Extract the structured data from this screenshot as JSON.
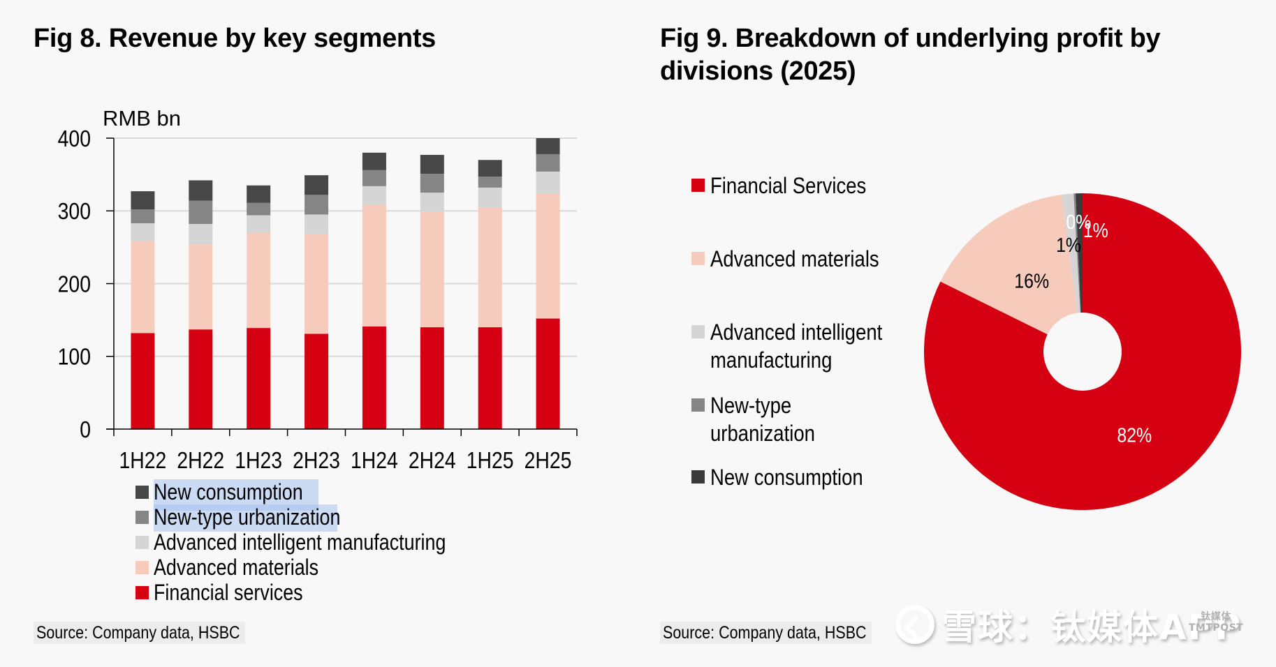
{
  "left_figure": {
    "title": "Fig 8. Revenue by key segments",
    "source": "Source: Company data, HSBC",
    "highlighted_legend_items": [
      "New consumption",
      "New-type urbanization"
    ]
  },
  "right_figure": {
    "title": "Fig 9. Breakdown of underlying profit by divisions (2025)",
    "source": "Source: Company data, HSBC"
  },
  "watermark": {
    "text": "雪球：钛媒体APP",
    "badge_line1": "钛媒体",
    "badge_line2": "TMTPOST",
    "logo_icon": "xueqiu-snowball-logo-icon"
  },
  "colors": {
    "financial_services": "#d50012",
    "advanced_materials": "#f6cbbb",
    "advanced_intelligent_manufacturing": "#d5d5d5",
    "new_type_urbanization": "#858585",
    "new_consumption": "#474747"
  },
  "chart_data": [
    {
      "type": "bar",
      "stacked": true,
      "title": "Fig 8. Revenue by key segments",
      "ylabel": "RMB bn",
      "xlabel": "",
      "ylim": [
        0,
        400
      ],
      "yticks": [
        0,
        100,
        200,
        300,
        400
      ],
      "grid": true,
      "legend_position": "bottom",
      "categories": [
        "1H22",
        "2H22",
        "1H23",
        "2H23",
        "1H24",
        "2H24",
        "1H25",
        "2H25"
      ],
      "series": [
        {
          "name": "Financial services",
          "color": "#d50012",
          "values": [
            132,
            137,
            139,
            131,
            141,
            140,
            140,
            152
          ]
        },
        {
          "name": "Advanced materials",
          "color": "#f6cbbb",
          "values": [
            127,
            117,
            131,
            137,
            167,
            159,
            165,
            172
          ]
        },
        {
          "name": "Advanced intelligent manufacturing",
          "color": "#d5d5d5",
          "values": [
            24,
            28,
            24,
            27,
            26,
            26,
            27,
            30
          ]
        },
        {
          "name": "New-type urbanization",
          "color": "#858585",
          "values": [
            19,
            32,
            17,
            27,
            22,
            26,
            15,
            24
          ]
        },
        {
          "name": "New consumption",
          "color": "#474747",
          "values": [
            25,
            28,
            24,
            27,
            24,
            26,
            23,
            22
          ]
        }
      ],
      "legend_order": [
        "New consumption",
        "New-type urbanization",
        "Advanced intelligent manufacturing",
        "Advanced materials",
        "Financial services"
      ]
    },
    {
      "type": "pie",
      "donut": true,
      "title": "Fig 9. Breakdown of underlying profit by divisions (2025)",
      "legend_position": "left",
      "start": "12 o'clock, clockwise",
      "slices": [
        {
          "name": "Financial Services",
          "value": 82.3,
          "label": "82%",
          "color": "#d50012",
          "label_color": "#ffffff"
        },
        {
          "name": "Advanced materials",
          "value": 15.6,
          "label": "16%",
          "color": "#f6cbbb",
          "label_color": "#000000"
        },
        {
          "name": "Advanced intelligent manufacturing",
          "value": 1.2,
          "label": "1%",
          "color": "#d5d5d5",
          "label_color": "#000000"
        },
        {
          "name": "New-type urbanization",
          "value": 0.2,
          "label": "0%",
          "color": "#858585",
          "label_color": "#ffffff"
        },
        {
          "name": "New consumption",
          "value": 0.7,
          "label": "1%",
          "color": "#3a3a3a",
          "label_color": "#ffffff"
        }
      ],
      "legend_order": [
        "Financial Services",
        "Advanced materials",
        "Advanced intelligent manufacturing",
        "New-type urbanization",
        "New consumption"
      ]
    }
  ]
}
